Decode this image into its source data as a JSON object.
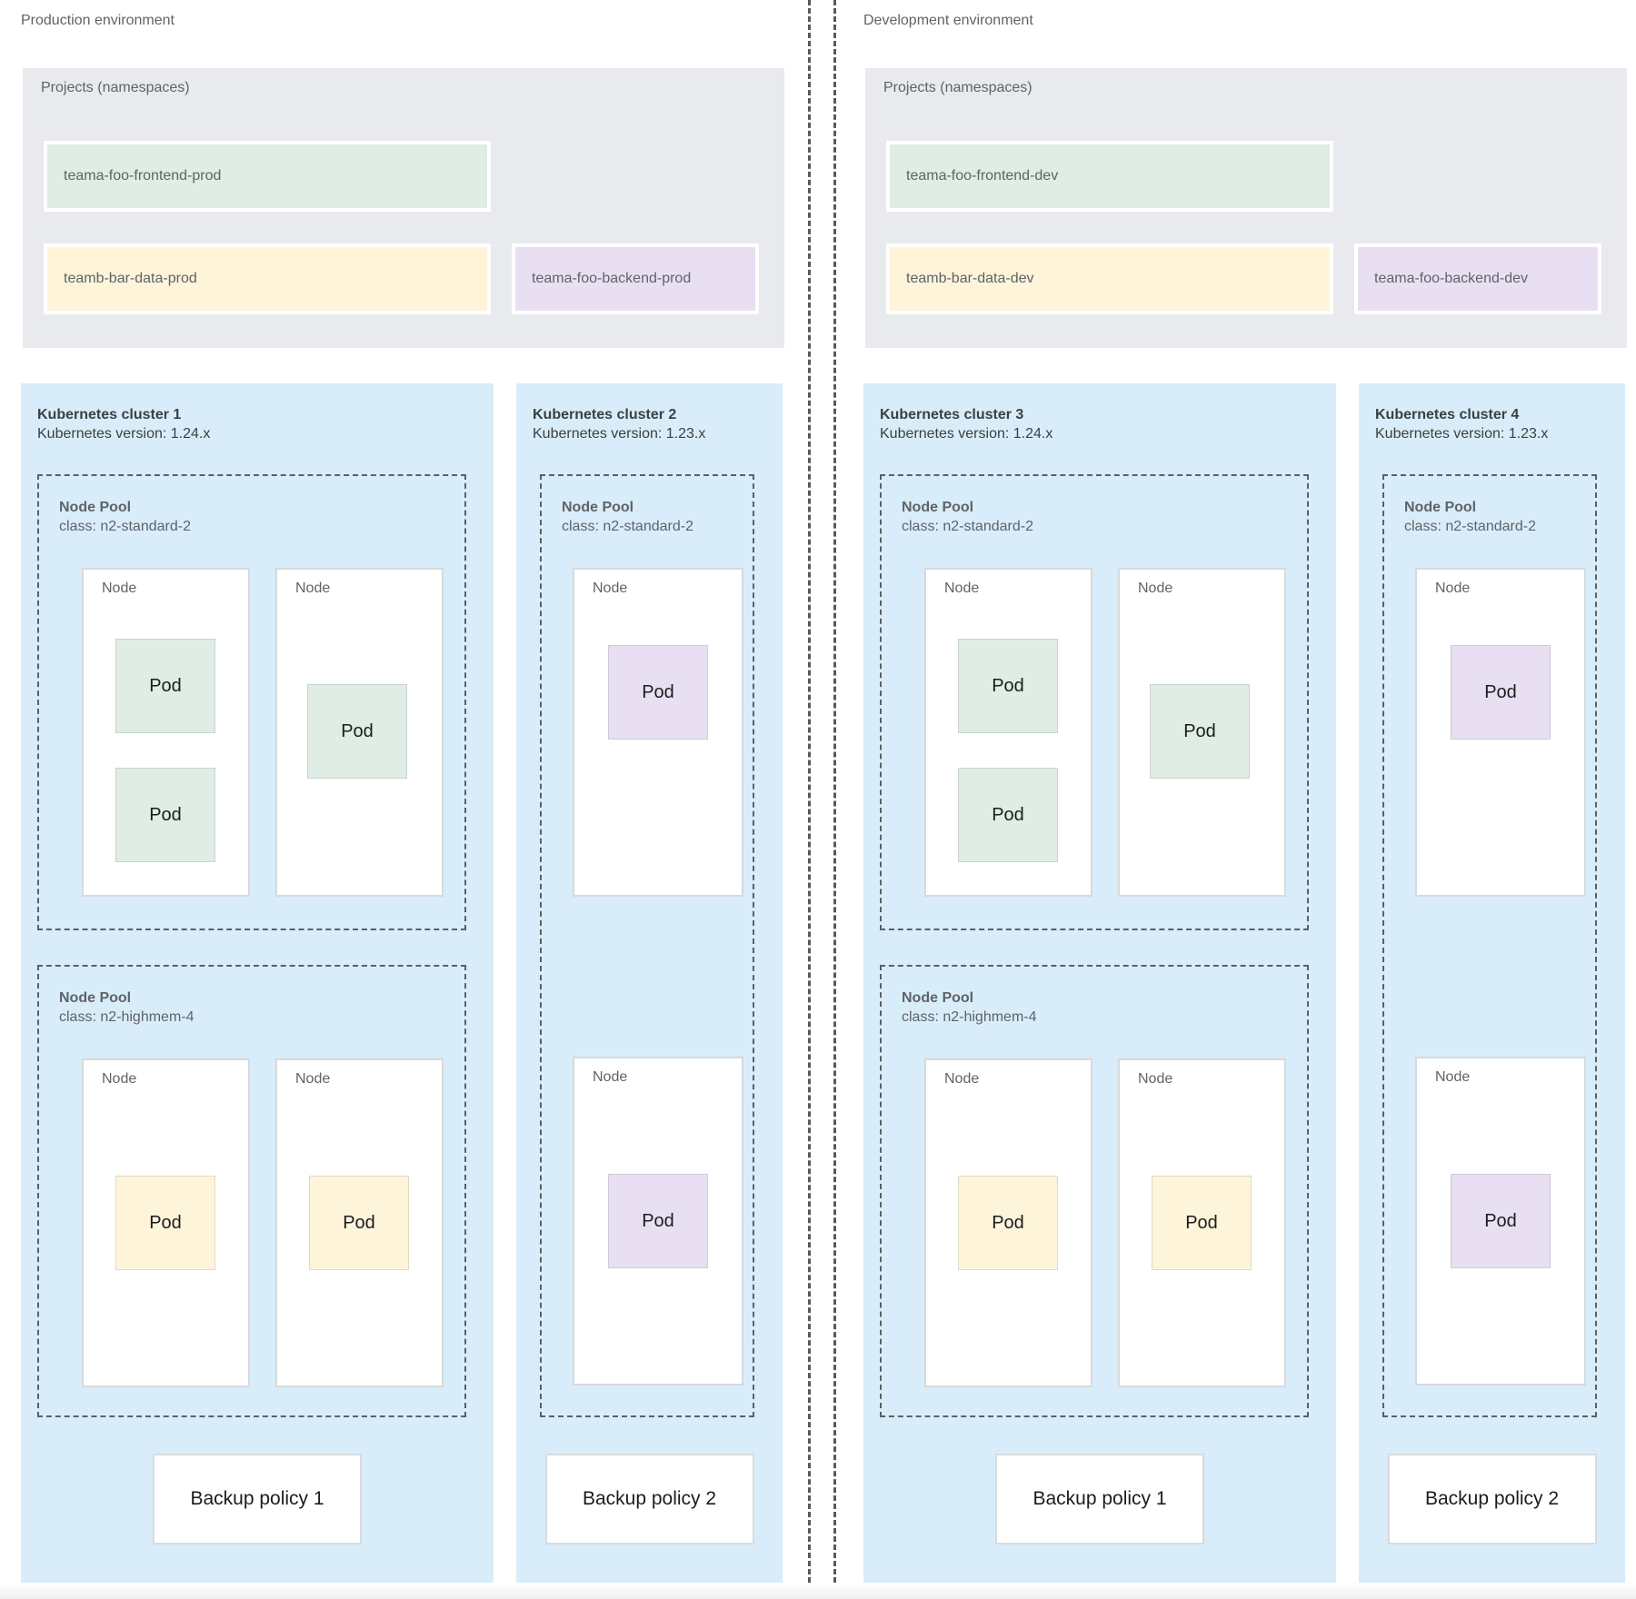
{
  "palette": {
    "cluster_bg": "#d8edf9",
    "projects_bg": "#e8eaed",
    "green": "#dfede5",
    "yellow": "#fdf4da",
    "purple": "#e8e0f2",
    "dashed_border": "#5c6064",
    "text_gray": "#5f6368",
    "text_dark": "#3c4043"
  },
  "environments": [
    {
      "title": "Production environment",
      "projects": {
        "label": "Projects (namespaces)",
        "namespaces": [
          {
            "name": "teama-foo-frontend-prod",
            "color": "green"
          },
          {
            "name": "teamb-bar-data-prod",
            "color": "yellow"
          },
          {
            "name": "teama-foo-backend-prod",
            "color": "purple"
          }
        ]
      },
      "clusters": [
        {
          "name": "Kubernetes cluster 1",
          "version_label": "Kubernetes version: 1.24.x",
          "node_pools": [
            {
              "name": "Node Pool",
              "class_label": "class: n2-standard-2",
              "nodes": [
                {
                  "label": "Node",
                  "pods": [
                    {
                      "label": "Pod",
                      "color": "green"
                    },
                    {
                      "label": "Pod",
                      "color": "green"
                    }
                  ]
                },
                {
                  "label": "Node",
                  "pods": [
                    {
                      "label": "Pod",
                      "color": "green"
                    }
                  ]
                }
              ]
            },
            {
              "name": "Node Pool",
              "class_label": "class: n2-highmem-4",
              "nodes": [
                {
                  "label": "Node",
                  "pods": [
                    {
                      "label": "Pod",
                      "color": "yellow"
                    }
                  ]
                },
                {
                  "label": "Node",
                  "pods": [
                    {
                      "label": "Pod",
                      "color": "yellow"
                    }
                  ]
                }
              ]
            }
          ],
          "backup_policy": "Backup policy 1"
        },
        {
          "name": "Kubernetes cluster 2",
          "version_label": "Kubernetes version: 1.23.x",
          "node_pools": [
            {
              "name": "Node Pool",
              "class_label": "class: n2-standard-2",
              "nodes": [
                {
                  "label": "Node",
                  "pods": [
                    {
                      "label": "Pod",
                      "color": "purple"
                    }
                  ]
                },
                {
                  "label": "Node",
                  "pods": [
                    {
                      "label": "Pod",
                      "color": "purple"
                    }
                  ]
                }
              ]
            }
          ],
          "backup_policy": "Backup policy 2"
        }
      ]
    },
    {
      "title": "Development environment",
      "projects": {
        "label": "Projects (namespaces)",
        "namespaces": [
          {
            "name": "teama-foo-frontend-dev",
            "color": "green"
          },
          {
            "name": "teamb-bar-data-dev",
            "color": "yellow"
          },
          {
            "name": "teama-foo-backend-dev",
            "color": "purple"
          }
        ]
      },
      "clusters": [
        {
          "name": "Kubernetes cluster 3",
          "version_label": "Kubernetes version: 1.24.x",
          "node_pools": [
            {
              "name": "Node Pool",
              "class_label": "class: n2-standard-2",
              "nodes": [
                {
                  "label": "Node",
                  "pods": [
                    {
                      "label": "Pod",
                      "color": "green"
                    },
                    {
                      "label": "Pod",
                      "color": "green"
                    }
                  ]
                },
                {
                  "label": "Node",
                  "pods": [
                    {
                      "label": "Pod",
                      "color": "green"
                    }
                  ]
                }
              ]
            },
            {
              "name": "Node Pool",
              "class_label": "class: n2-highmem-4",
              "nodes": [
                {
                  "label": "Node",
                  "pods": [
                    {
                      "label": "Pod",
                      "color": "yellow"
                    }
                  ]
                },
                {
                  "label": "Node",
                  "pods": [
                    {
                      "label": "Pod",
                      "color": "yellow"
                    }
                  ]
                }
              ]
            }
          ],
          "backup_policy": "Backup policy 1"
        },
        {
          "name": "Kubernetes cluster 4",
          "version_label": "Kubernetes version: 1.23.x",
          "node_pools": [
            {
              "name": "Node Pool",
              "class_label": "class: n2-standard-2",
              "nodes": [
                {
                  "label": "Node",
                  "pods": [
                    {
                      "label": "Pod",
                      "color": "purple"
                    }
                  ]
                },
                {
                  "label": "Node",
                  "pods": [
                    {
                      "label": "Pod",
                      "color": "purple"
                    }
                  ]
                }
              ]
            }
          ],
          "backup_policy": "Backup policy 2"
        }
      ]
    }
  ]
}
